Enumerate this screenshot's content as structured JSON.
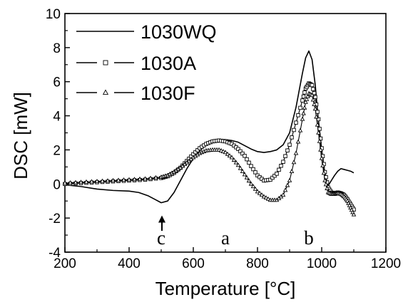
{
  "chart_data": {
    "type": "line",
    "title": "",
    "xlabel": "Temperature [°C]",
    "ylabel": "DSC [mW]",
    "xlim": [
      200,
      1200
    ],
    "ylim": [
      -4,
      10
    ],
    "xticks": [
      200,
      400,
      600,
      800,
      1000,
      1200
    ],
    "yticks": [
      -4,
      -2,
      0,
      2,
      4,
      6,
      8,
      10
    ],
    "grid": false,
    "legend_position": "top-left",
    "series": [
      {
        "name": "1030WQ",
        "marker": "none",
        "color": "#000000",
        "x": [
          200,
          250,
          300,
          350,
          400,
          430,
          460,
          480,
          500,
          520,
          540,
          560,
          580,
          600,
          620,
          640,
          660,
          680,
          700,
          720,
          740,
          760,
          780,
          800,
          820,
          840,
          860,
          880,
          900,
          920,
          940,
          950,
          960,
          970,
          980,
          990,
          1000,
          1010,
          1020,
          1030,
          1040,
          1050,
          1060,
          1070,
          1080,
          1090,
          1100
        ],
        "y": [
          -0.05,
          -0.15,
          -0.3,
          -0.38,
          -0.42,
          -0.5,
          -0.7,
          -0.9,
          -1.1,
          -1.0,
          -0.5,
          0.2,
          0.9,
          1.5,
          1.95,
          2.3,
          2.5,
          2.6,
          2.6,
          2.55,
          2.45,
          2.25,
          2.05,
          1.9,
          1.85,
          1.9,
          2.0,
          2.3,
          3.0,
          4.5,
          6.5,
          7.4,
          7.8,
          7.3,
          5.8,
          3.6,
          1.5,
          0.4,
          -0.1,
          0.2,
          0.5,
          0.75,
          0.9,
          0.85,
          0.8,
          0.75,
          0.65
        ]
      },
      {
        "name": "1030A",
        "marker": "square",
        "color": "#000000",
        "x": [
          200,
          250,
          300,
          350,
          400,
          450,
          500,
          520,
          540,
          560,
          580,
          600,
          620,
          640,
          660,
          680,
          700,
          720,
          740,
          760,
          780,
          800,
          820,
          840,
          860,
          880,
          900,
          920,
          940,
          950,
          960,
          970,
          980,
          990,
          1000,
          1010,
          1020,
          1030,
          1040,
          1050,
          1060,
          1070,
          1080,
          1090,
          1100
        ],
        "y": [
          0.0,
          0.05,
          0.1,
          0.15,
          0.2,
          0.25,
          0.35,
          0.45,
          0.65,
          0.95,
          1.35,
          1.75,
          2.1,
          2.35,
          2.5,
          2.55,
          2.5,
          2.35,
          2.05,
          1.65,
          1.05,
          0.5,
          0.2,
          0.25,
          0.6,
          1.3,
          2.3,
          3.6,
          4.9,
          5.6,
          5.9,
          5.8,
          5.1,
          3.8,
          2.1,
          0.7,
          -0.2,
          -0.5,
          -0.55,
          -0.5,
          -0.55,
          -0.65,
          -0.9,
          -1.2,
          -1.5
        ]
      },
      {
        "name": "1030F",
        "marker": "triangle",
        "color": "#000000",
        "x": [
          200,
          250,
          300,
          350,
          400,
          450,
          500,
          520,
          540,
          560,
          580,
          600,
          620,
          640,
          660,
          680,
          700,
          720,
          740,
          760,
          780,
          800,
          820,
          840,
          860,
          880,
          900,
          920,
          940,
          950,
          960,
          970,
          980,
          990,
          1000,
          1010,
          1020,
          1030,
          1040,
          1050,
          1060,
          1070,
          1080,
          1090,
          1100
        ],
        "y": [
          0.05,
          0.1,
          0.15,
          0.2,
          0.25,
          0.3,
          0.4,
          0.5,
          0.7,
          0.95,
          1.25,
          1.55,
          1.8,
          1.95,
          2.0,
          2.0,
          1.85,
          1.55,
          1.1,
          0.55,
          0.0,
          -0.45,
          -0.75,
          -0.95,
          -0.95,
          -0.65,
          0.2,
          1.8,
          3.8,
          4.8,
          5.3,
          5.2,
          4.4,
          3.0,
          1.5,
          0.2,
          -0.5,
          -0.6,
          -0.6,
          -0.55,
          -0.6,
          -0.75,
          -1.0,
          -1.4,
          -1.8
        ]
      }
    ],
    "annotations": [
      {
        "text": "c",
        "x": 500,
        "y": -3.2,
        "arrow": true,
        "arrow_from_y": -2.75,
        "arrow_to_y": -1.85
      },
      {
        "text": "a",
        "x": 700,
        "y": -3.2
      },
      {
        "text": "b",
        "x": 960,
        "y": -3.2
      }
    ]
  }
}
